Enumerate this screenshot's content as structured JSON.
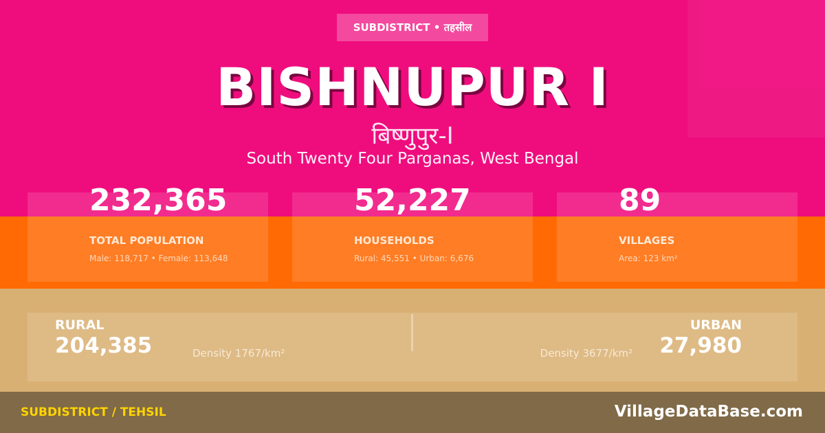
{
  "colors": {
    "pink": "#ef0d7e",
    "orange": "#ff6a04",
    "tan": "#d9b073",
    "footer": "#806a48",
    "footer_label": "#ffd400"
  },
  "header": {
    "badge": "SUBDISTRICT • तहसील",
    "title": "BISHNUPUR I",
    "title_hindi": "बिष्णुपुर-I",
    "location": "South Twenty Four Parganas, West Bengal"
  },
  "stats": [
    {
      "value": "232,365",
      "label": "TOTAL POPULATION",
      "sub": "Male: 118,717 • Female: 113,648"
    },
    {
      "value": "52,227",
      "label": "HOUSEHOLDS",
      "sub": "Rural: 45,551 • Urban: 6,676"
    },
    {
      "value": "89",
      "label": "VILLAGES",
      "sub": "Area: 123 km²"
    }
  ],
  "rural": {
    "label": "RURAL",
    "value": "204,385",
    "density": "Density 1767/km²"
  },
  "urban": {
    "label": "URBAN",
    "value": "27,980",
    "density": "Density 3677/km²"
  },
  "footer": {
    "left": "SUBDISTRICT / TEHSIL",
    "brand": "VillageDataBase.com"
  }
}
